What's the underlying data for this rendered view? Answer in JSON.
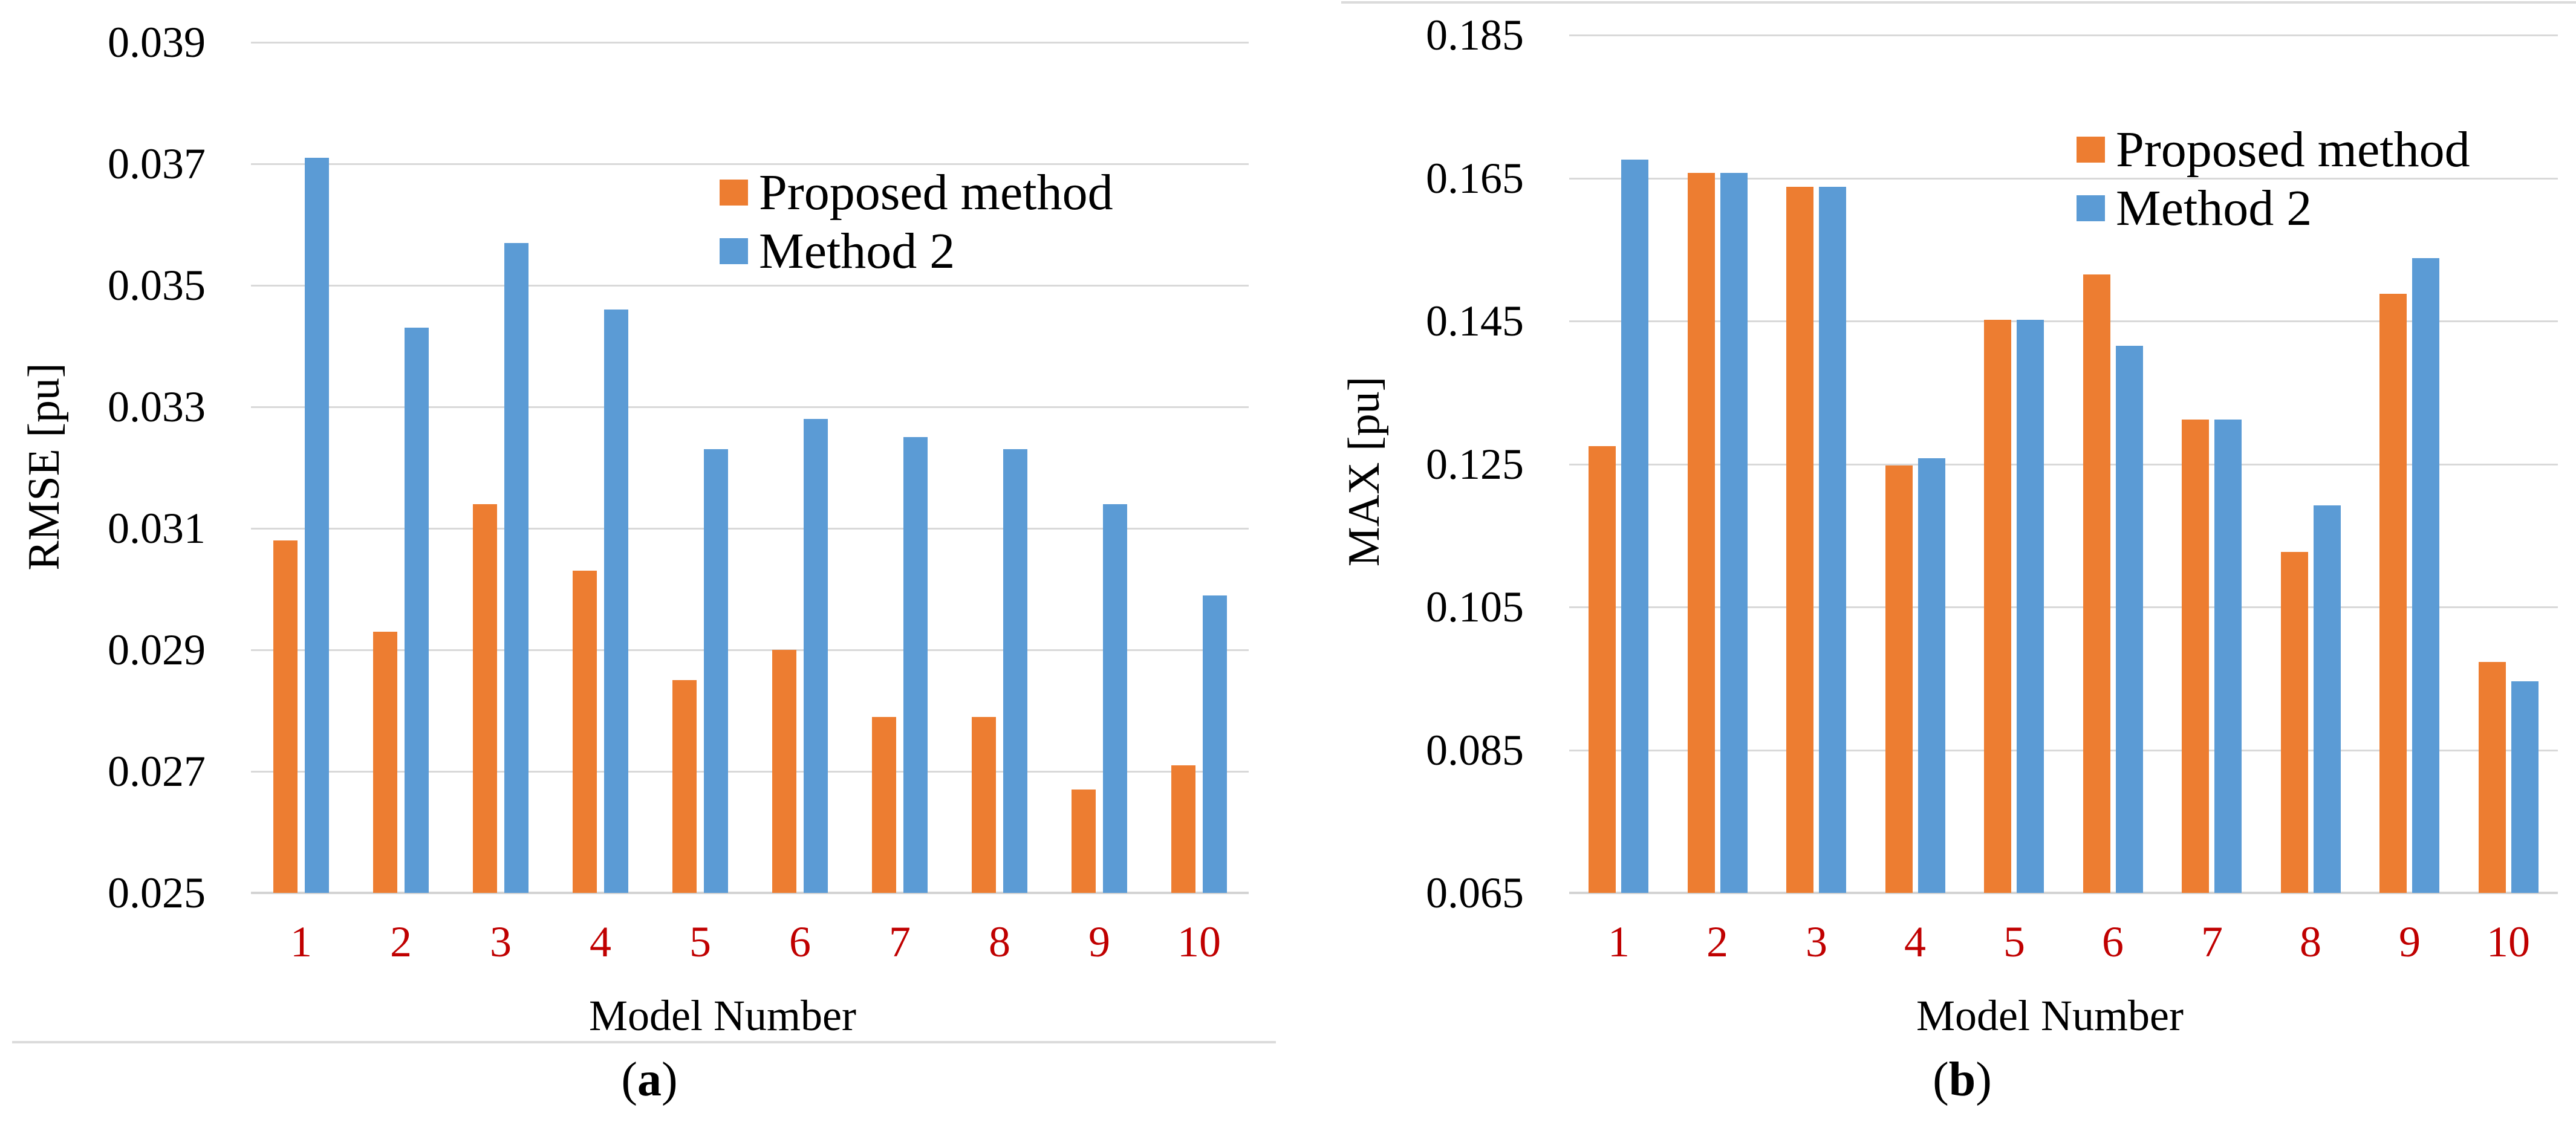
{
  "page": {
    "background": "#FFFFFF"
  },
  "colors": {
    "proposed_method": "#ED7D31",
    "method_2": "#5B9BD5",
    "x_tick_label": "#C00000",
    "y_tick_label": "#000000",
    "gridline": "#D9D9D9",
    "axis_line": "#D3D3D3",
    "figure_edge": "#DBDBDB"
  },
  "panels": [
    {
      "caption_open": "(",
      "caption_letter": "a",
      "caption_close": ")"
    },
    {
      "caption_open": "(",
      "caption_letter": "b",
      "caption_close": ")"
    }
  ],
  "chart_data": [
    {
      "type": "bar",
      "title": "",
      "xlabel": "Model Number",
      "ylabel": "RMSE [pu]",
      "categories": [
        "1",
        "2",
        "3",
        "4",
        "5",
        "6",
        "7",
        "8",
        "9",
        "10"
      ],
      "series": [
        {
          "name": "Proposed method",
          "values": [
            0.0308,
            0.0293,
            0.0314,
            0.0303,
            0.0285,
            0.029,
            0.0279,
            0.0279,
            0.0267,
            0.0271
          ]
        },
        {
          "name": "Method 2",
          "values": [
            0.0371,
            0.0343,
            0.0357,
            0.0346,
            0.0323,
            0.0328,
            0.0325,
            0.0323,
            0.0314,
            0.0299
          ]
        }
      ],
      "ylim": [
        0.025,
        0.039
      ],
      "ytick_step": 0.002,
      "ytick_labels": [
        "0.039",
        "0.037",
        "0.035",
        "0.033",
        "0.031",
        "0.029",
        "0.027",
        "0.025"
      ],
      "grid": true,
      "legend_position": "inside-top"
    },
    {
      "type": "bar",
      "title": "",
      "xlabel": "Model Number",
      "ylabel": "MAX [pu]",
      "categories": [
        "1",
        "2",
        "3",
        "4",
        "5",
        "6",
        "7",
        "8",
        "9",
        "10"
      ],
      "series": [
        {
          "name": "Proposed method",
          "values": [
            0.1275,
            0.1657,
            0.1638,
            0.1248,
            0.1452,
            0.1515,
            0.1312,
            0.1127,
            0.1488,
            0.0973
          ]
        },
        {
          "name": "Method 2",
          "values": [
            0.1676,
            0.1657,
            0.1638,
            0.1258,
            0.1452,
            0.1415,
            0.1312,
            0.1192,
            0.1538,
            0.0946
          ]
        }
      ],
      "ylim": [
        0.065,
        0.185
      ],
      "ytick_step": 0.02,
      "ytick_labels": [
        "0.185",
        "0.165",
        "0.145",
        "0.125",
        "0.105",
        "0.085",
        "0.065"
      ],
      "grid": true,
      "legend_position": "inside-top"
    }
  ]
}
